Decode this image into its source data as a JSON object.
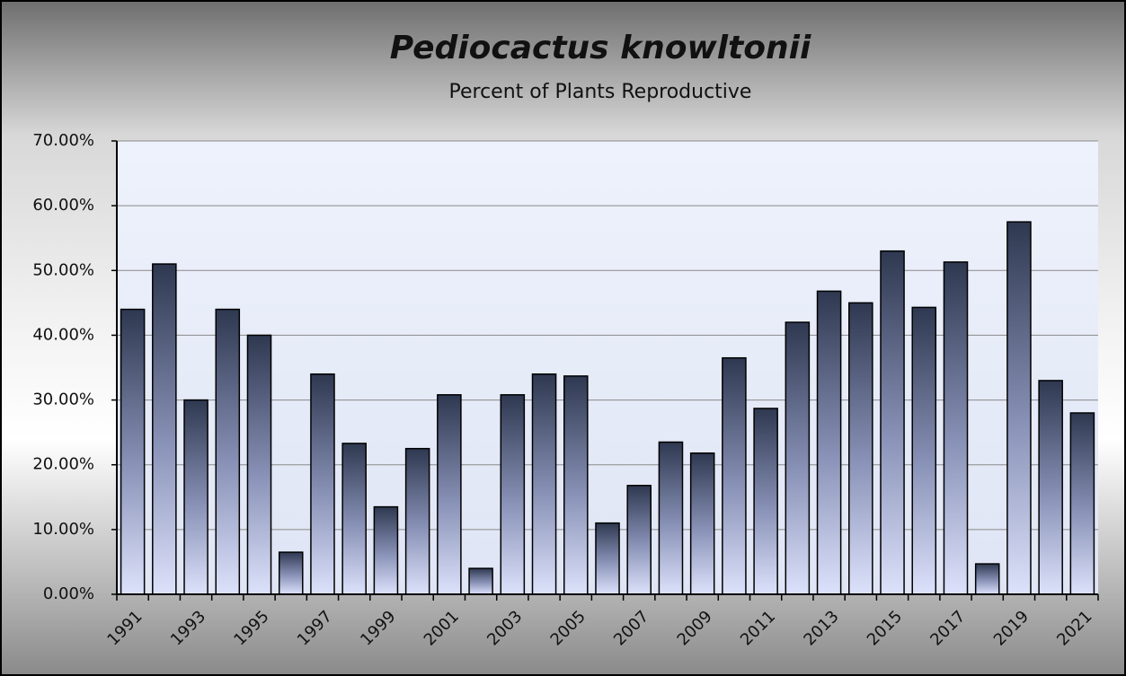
{
  "chart_data": {
    "type": "bar",
    "title": "Pediocactus knowltonii",
    "subtitle": "Percent of Plants Reproductive",
    "categories": [
      "1991",
      null,
      "1993",
      null,
      "1995",
      null,
      "1997",
      null,
      "1999",
      null,
      "2001",
      null,
      "2003",
      null,
      "2005",
      null,
      "2007",
      null,
      "2009",
      null,
      "2011",
      null,
      "2013",
      null,
      "2015",
      null,
      "2017",
      null,
      "2019",
      null,
      "2021"
    ],
    "values": [
      44,
      51,
      30,
      44,
      40,
      6.5,
      34,
      23.3,
      13.5,
      22.5,
      30.8,
      4,
      30.8,
      34,
      33.7,
      11,
      16.8,
      23.5,
      21.8,
      36.5,
      28.7,
      42,
      46.8,
      45,
      53,
      44.3,
      51.3,
      4.7,
      57.5,
      33,
      28
    ],
    "color": "#2e3850",
    "ylim": [
      0,
      70
    ],
    "yticks": [
      {
        "value": 0,
        "label": "0.00%"
      },
      {
        "value": 10,
        "label": "10.00%"
      },
      {
        "value": 20,
        "label": "20.00%"
      },
      {
        "value": 30,
        "label": "30.00%"
      },
      {
        "value": 40,
        "label": "40.00%"
      },
      {
        "value": 50,
        "label": "50.00%"
      },
      {
        "value": 60,
        "label": "60.00%"
      },
      {
        "value": 70,
        "label": "70.00%"
      }
    ],
    "grid": true
  }
}
